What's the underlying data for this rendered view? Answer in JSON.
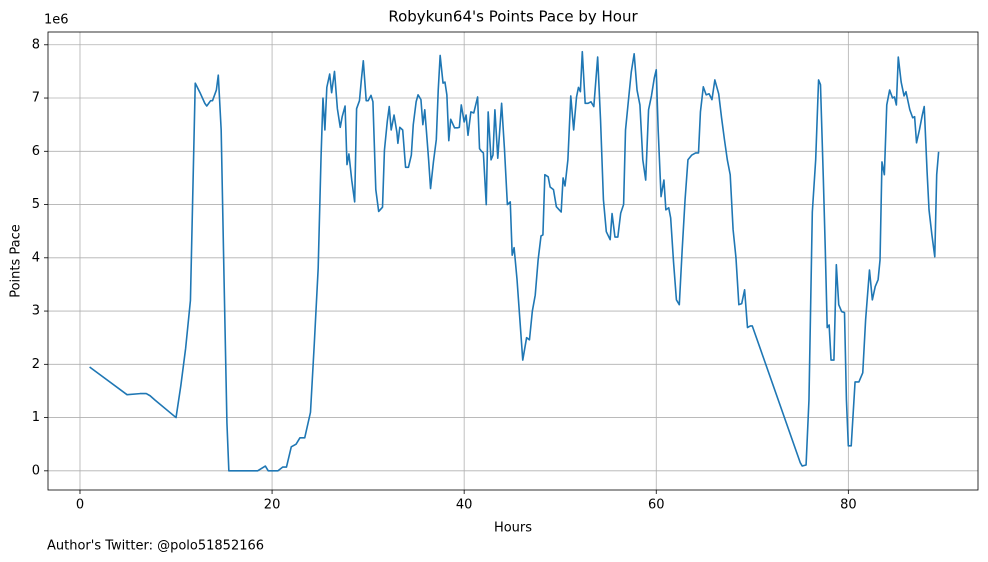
{
  "chart_data": {
    "type": "line",
    "title": "Robykun64's Points Pace by Hour",
    "x_label": "Hours",
    "y_label": "Points Pace",
    "y_offset_text": "1e6",
    "footnote": "Author's Twitter: @polo51852166",
    "xlim": [
      -3.33,
      93.5
    ],
    "ylim": [
      -0.36,
      8.24
    ],
    "xticks": [
      0,
      20,
      40,
      60,
      80
    ],
    "yticks": [
      0,
      1,
      2,
      3,
      4,
      5,
      6,
      7,
      8
    ],
    "grid": true,
    "color": "#1f77b4",
    "x": [
      1,
      4.9,
      6.25,
      6.9,
      7.3,
      7.8,
      10,
      10.5,
      11,
      11.5,
      12,
      12.5,
      13,
      13.2,
      13.4,
      13.6,
      13.8,
      14.2,
      14.4,
      14.7,
      15,
      15.3,
      15.5,
      18.5,
      19.3,
      19.6,
      20.6,
      21.1,
      21.5,
      22,
      22.5,
      22.9,
      23.4,
      24,
      24.4,
      24.8,
      25.1,
      25.3,
      25.5,
      25.7,
      26,
      26.2,
      26.5,
      26.8,
      27.1,
      27.3,
      27.6,
      27.8,
      28,
      28.3,
      28.6,
      28.8,
      29.1,
      29.3,
      29.5,
      29.8,
      30,
      30.3,
      30.5,
      30.8,
      31.1,
      31.5,
      31.7,
      32,
      32.2,
      32.4,
      32.7,
      33,
      33.1,
      33.3,
      33.6,
      33.9,
      34.2,
      34.5,
      34.7,
      35,
      35.2,
      35.5,
      35.7,
      35.9,
      36.3,
      36.5,
      36.8,
      37.1,
      37.3,
      37.5,
      37.8,
      38,
      38.2,
      38.4,
      38.6,
      39,
      39.3,
      39.5,
      39.7,
      40,
      40.2,
      40.4,
      40.7,
      41,
      41.4,
      41.6,
      41.8,
      42,
      42.3,
      42.5,
      42.8,
      43,
      43.2,
      43.5,
      43.9,
      44.2,
      44.5,
      44.8,
      45,
      45.2,
      45.5,
      45.8,
      46.1,
      46.5,
      46.8,
      47.1,
      47.4,
      47.7,
      48,
      48.2,
      48.4,
      48.75,
      48.95,
      49.3,
      49.6,
      49.8,
      50.1,
      50.3,
      50.5,
      50.8,
      51.1,
      51.4,
      51.7,
      51.9,
      52.1,
      52.3,
      52.6,
      52.9,
      53.2,
      53.5,
      53.9,
      54.2,
      54.5,
      54.8,
      55.2,
      55.4,
      55.7,
      56,
      56.3,
      56.6,
      56.8,
      57.1,
      57.4,
      57.7,
      58,
      58.3,
      58.6,
      58.9,
      59.2,
      59.5,
      59.8,
      60,
      60.2,
      60.5,
      60.8,
      61,
      61.3,
      61.5,
      61.8,
      62.1,
      62.4,
      62.7,
      63,
      63.3,
      63.7,
      64.1,
      64.4,
      64.6,
      64.9,
      65.2,
      65.5,
      65.8,
      66.1,
      66.5,
      66.8,
      67.1,
      67.4,
      67.7,
      68,
      68.3,
      68.6,
      68.9,
      69.2,
      69.5,
      69.8,
      70,
      75,
      75.2,
      75.6,
      75.9,
      76.25,
      76.6,
      76.9,
      77.1,
      77.4,
      77.6,
      77.8,
      78,
      78.2,
      78.5,
      78.75,
      79,
      79.3,
      79.6,
      79.8,
      80,
      80.3,
      80.7,
      81.1,
      81.5,
      81.8,
      82.2,
      82.5,
      82.8,
      83.1,
      83.3,
      83.5,
      83.75,
      84,
      84.3,
      84.6,
      84.8,
      85,
      85.2,
      85.5,
      85.8,
      86,
      86.4,
      86.7,
      86.9,
      87.1,
      87.4,
      87.7,
      87.9,
      88.2,
      88.4,
      88.7,
      89,
      89.2,
      89.4
    ],
    "values": [
      1.95,
      1.43,
      1.45,
      1.45,
      1.41,
      1.33,
      1.0,
      1.6,
      2.3,
      3.2,
      7.28,
      7.1,
      6.9,
      6.85,
      6.9,
      6.95,
      6.95,
      7.15,
      7.43,
      6.4,
      3.6,
      0.9,
      0.0,
      0.0,
      0.09,
      0.0,
      0.0,
      0.07,
      0.07,
      0.45,
      0.5,
      0.62,
      0.62,
      1.1,
      2.4,
      3.8,
      5.9,
      7.0,
      6.4,
      7.2,
      7.45,
      7.1,
      7.5,
      6.8,
      6.45,
      6.65,
      6.85,
      5.75,
      5.95,
      5.45,
      5.05,
      6.8,
      6.95,
      7.35,
      7.7,
      6.95,
      6.95,
      7.05,
      6.93,
      5.28,
      4.87,
      4.95,
      6.02,
      6.57,
      6.84,
      6.4,
      6.68,
      6.35,
      6.15,
      6.45,
      6.4,
      5.7,
      5.7,
      5.93,
      6.5,
      6.93,
      7.06,
      6.97,
      6.5,
      6.78,
      5.84,
      5.3,
      5.8,
      6.22,
      7.15,
      7.8,
      7.28,
      7.3,
      7.06,
      6.2,
      6.6,
      6.44,
      6.44,
      6.45,
      6.87,
      6.55,
      6.68,
      6.3,
      6.74,
      6.72,
      7.02,
      6.05,
      6.0,
      5.97,
      5.0,
      6.74,
      5.84,
      5.93,
      6.78,
      5.87,
      6.9,
      6.03,
      5.0,
      5.05,
      4.05,
      4.19,
      3.6,
      2.84,
      2.08,
      2.5,
      2.46,
      3.0,
      3.3,
      3.96,
      4.41,
      4.43,
      5.56,
      5.52,
      5.33,
      5.28,
      4.96,
      4.92,
      4.86,
      5.5,
      5.35,
      5.84,
      7.04,
      6.4,
      7.02,
      7.2,
      7.12,
      7.87,
      6.9,
      6.9,
      6.93,
      6.84,
      7.77,
      6.59,
      5.09,
      4.49,
      4.34,
      4.83,
      4.39,
      4.39,
      4.84,
      5.0,
      6.4,
      6.95,
      7.49,
      7.83,
      7.15,
      6.87,
      5.84,
      5.46,
      6.78,
      7.04,
      7.38,
      7.53,
      6.4,
      5.15,
      5.46,
      4.9,
      4.94,
      4.75,
      3.92,
      3.21,
      3.12,
      4.15,
      5.09,
      5.84,
      5.93,
      5.97,
      5.97,
      6.74,
      7.21,
      7.06,
      7.08,
      6.97,
      7.34,
      7.08,
      6.63,
      6.22,
      5.84,
      5.56,
      4.53,
      4.0,
      3.12,
      3.14,
      3.4,
      2.69,
      2.72,
      2.72,
      0.15,
      0.09,
      0.11,
      1.33,
      4.86,
      5.84,
      7.34,
      7.25,
      5.46,
      4.15,
      2.69,
      2.74,
      2.08,
      2.08,
      3.87,
      3.12,
      2.99,
      2.97,
      1.33,
      0.47,
      0.47,
      1.67,
      1.67,
      1.84,
      2.84,
      3.77,
      3.21,
      3.46,
      3.59,
      3.96,
      5.8,
      5.56,
      6.87,
      7.15,
      7.0,
      7.02,
      6.87,
      7.77,
      7.3,
      7.04,
      7.12,
      6.78,
      6.63,
      6.65,
      6.16,
      6.4,
      6.68,
      6.84,
      5.61,
      4.9,
      4.43,
      4.02,
      5.56,
      5.99
    ]
  }
}
